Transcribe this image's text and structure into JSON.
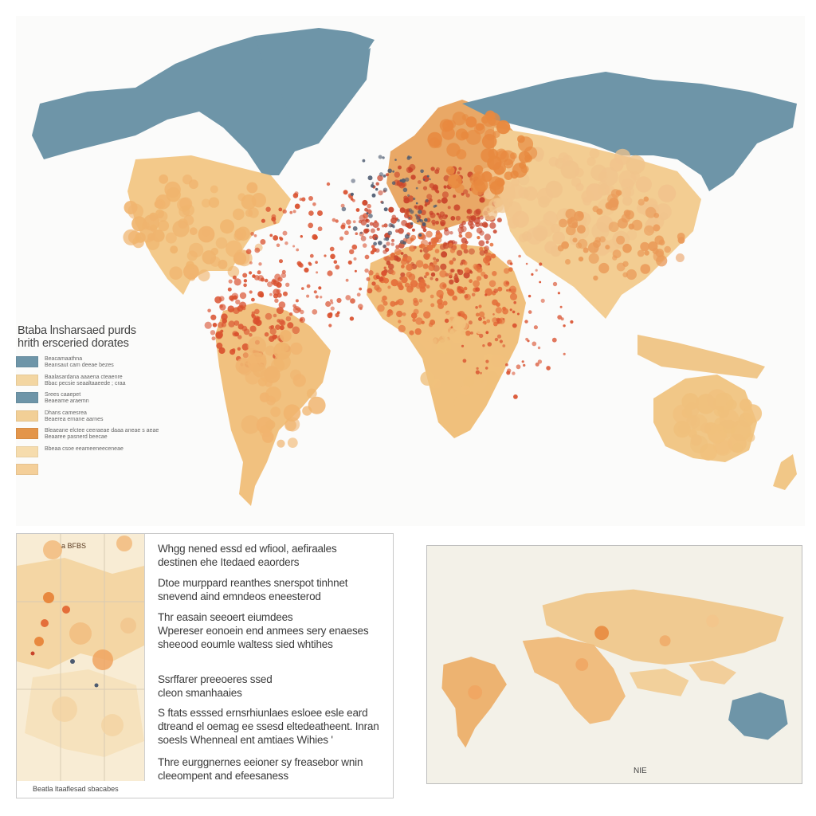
{
  "legend": {
    "title_line1": "Btaba lnsharsaed purds",
    "title_line2": "hrith ersceried dorates",
    "items": [
      {
        "color": "#6e95a8",
        "line1": "Beacamaathna",
        "line2": "Beansaut cam deeae bezes"
      },
      {
        "color": "#f3d6a2",
        "line1": "Baalasardana aaaena cteaenre",
        "line2": "Bbac pecsie seaaltaaeede ; craa"
      },
      {
        "color": "#6e95a8",
        "line1": "Srees caaepet",
        "line2": "Beaeame araemn"
      },
      {
        "color": "#f2cf96",
        "line1": "Dhans camesrea",
        "line2": "Beaerea ernane aarnes"
      },
      {
        "color": "#e3954a",
        "line1": "Bleaeane elctee ceeraeae daaa aneae s  aeae",
        "line2": "Beaaree pasnerd beecae"
      },
      {
        "color": "#f6dcad",
        "line1": "Bbeaa csoe eeameeneeceneae",
        "line2": ""
      },
      {
        "color": "#f4cf99",
        "line1": "",
        "line2": ""
      }
    ]
  },
  "inset": {
    "label": "a BFBS",
    "caption": "Beatla ltaaflesad sbacabes"
  },
  "paragraphs": [
    {
      "line1": "Whgg nened essd ed wfiool, aefiraales",
      "line2": "destinen ehe Itedaed eaorders"
    },
    {
      "line1": "Dtoe murppard reanthes snerspot tinhnet",
      "line2": "snevend aind emndeos eneesterod"
    },
    {
      "line1": "Thr easain seeoert eiumdees",
      "line2": "Wpereser eonoein end anmees sery enaeses",
      "line3": "sheeood eoumle waltess sied whtihes"
    },
    {
      "line1": "Ssrffarer preeoeres ssed",
      "line2": "cleon smanhaaies"
    },
    {
      "line1": "S ftats esssed ernsrhiunlaes esloee esle eard",
      "line2": "dtreand el oemag ee ssesd eltedeatheent. Inran",
      "line3": "soesls Whenneal ent amtiaes Wihies '"
    },
    {
      "line1": "Thre eurggnernes eeioner sy freasebor wnin",
      "line2": "cleeompent and efeesaness"
    }
  ],
  "small_map": {
    "label": "NIE"
  },
  "colors": {
    "ocean_blue": "#6e95a8",
    "sand": "#f3d6a2",
    "orange": "#e3954a",
    "red": "#c9432a"
  }
}
